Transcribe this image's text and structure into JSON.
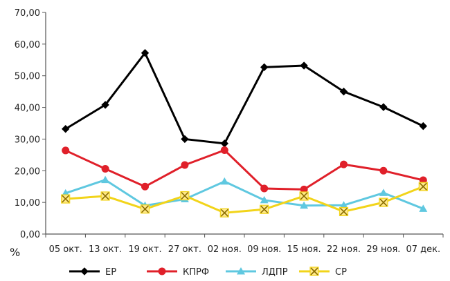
{
  "chart_data": {
    "type": "line",
    "title": "",
    "xlabel": "",
    "ylabel": "%",
    "ylim": [
      0,
      70
    ],
    "yticks": [
      "0,00",
      "10,00",
      "20,00",
      "30,00",
      "40,00",
      "50,00",
      "60,00",
      "70,00"
    ],
    "grid": false,
    "legend_position": "bottom",
    "categories": [
      "05 окт.",
      "13 окт.",
      "19 окт.",
      "27 окт.",
      "02 ноя.",
      "09 ноя.",
      "15 ноя.",
      "22 ноя.",
      "29 ноя.",
      "07 дек."
    ],
    "series": [
      {
        "name": "ЕР",
        "color": "#000000",
        "marker": "diamond",
        "values": [
          33.2,
          40.8,
          57.2,
          30.0,
          28.6,
          52.7,
          53.2,
          45.0,
          40.1,
          34.1
        ]
      },
      {
        "name": "КПРФ",
        "color": "#e0202a",
        "marker": "circle",
        "values": [
          26.4,
          20.6,
          15.0,
          21.8,
          26.5,
          14.4,
          14.1,
          22.0,
          20.0,
          17.0
        ]
      },
      {
        "name": "ЛДПР",
        "color": "#5fc8e0",
        "marker": "triangle",
        "values": [
          12.9,
          17.1,
          9.0,
          11.0,
          16.6,
          10.7,
          9.0,
          9.1,
          13.0,
          8.0
        ]
      },
      {
        "name": "СР",
        "color": "#f2d41a",
        "marker": "x",
        "values": [
          11.1,
          12.0,
          7.9,
          12.1,
          6.7,
          7.8,
          12.0,
          7.1,
          10.0,
          15.0
        ]
      }
    ]
  }
}
